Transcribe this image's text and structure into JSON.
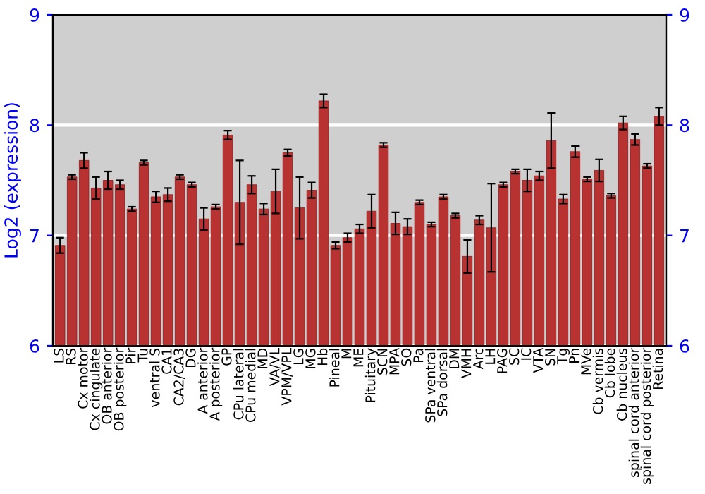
{
  "chart_data": {
    "type": "bar",
    "ylabel": "Log2 (expression)",
    "categories": [
      "LS",
      "RS",
      "Cx motor",
      "Cx cingulate",
      "OB anterior",
      "OB posterior",
      "Pir",
      "Tu",
      "ventral S",
      "CA1",
      "CA2/CA3",
      "DG",
      "A anterior",
      "A posterior",
      "GP",
      "CPu lateral",
      "CPu medial",
      "MD",
      "VA/VL",
      "VPM/VPL",
      "LG",
      "MG",
      "Hb",
      "Pineal",
      "M",
      "ME",
      "Pituitary",
      "SCN",
      "MPA",
      "SO",
      "Pa",
      "SPa ventral",
      "SPa dorsal",
      "DM",
      "VMH",
      "Arc",
      "LH",
      "PAG",
      "SC",
      "IC",
      "VTA",
      "SN",
      "Tg",
      "Pn",
      "MVe",
      "Cb vermis",
      "Cb lobe",
      "Cb nucleus",
      "spinal cord anterior",
      "spinal cord posterior",
      "Retina"
    ],
    "values": [
      6.91,
      7.53,
      7.68,
      7.43,
      7.5,
      7.46,
      7.24,
      7.66,
      7.35,
      7.37,
      7.53,
      7.46,
      7.15,
      7.26,
      7.91,
      7.3,
      7.46,
      7.24,
      7.4,
      7.75,
      7.25,
      7.41,
      8.22,
      6.91,
      6.98,
      7.06,
      7.22,
      7.82,
      7.11,
      7.08,
      7.3,
      7.1,
      7.35,
      7.18,
      6.81,
      7.14,
      7.07,
      7.46,
      7.58,
      7.5,
      7.54,
      7.86,
      7.33,
      7.76,
      7.51,
      7.59,
      7.36,
      8.02,
      7.87,
      7.63,
      8.08
    ],
    "errors": [
      0.07,
      0.02,
      0.07,
      0.1,
      0.08,
      0.04,
      0.02,
      0.02,
      0.05,
      0.06,
      0.02,
      0.02,
      0.1,
      0.02,
      0.04,
      0.38,
      0.08,
      0.05,
      0.2,
      0.03,
      0.28,
      0.07,
      0.06,
      0.03,
      0.04,
      0.04,
      0.15,
      0.02,
      0.1,
      0.07,
      0.02,
      0.02,
      0.02,
      0.02,
      0.15,
      0.04,
      0.4,
      0.02,
      0.02,
      0.1,
      0.04,
      0.25,
      0.04,
      0.05,
      0.02,
      0.1,
      0.02,
      0.06,
      0.05,
      0.02,
      0.08
    ],
    "color": "#b83232",
    "ylim": [
      6,
      9
    ],
    "yticks": [
      6,
      7,
      8,
      9
    ],
    "y2lim": [
      6,
      9
    ],
    "y2ticks": [
      6,
      7,
      8,
      9
    ],
    "grid": "y"
  }
}
